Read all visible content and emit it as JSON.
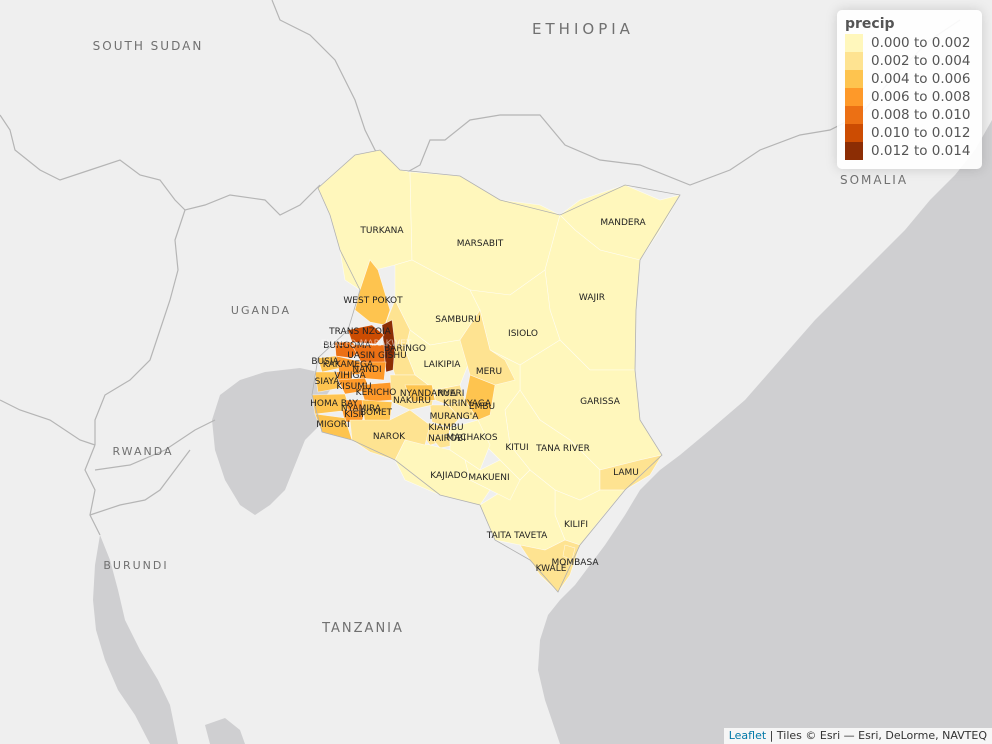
{
  "countries": [
    {
      "id": "south-sudan",
      "label": "SOUTH SUDAN"
    },
    {
      "id": "ethiopia",
      "label": "ETHIOPIA"
    },
    {
      "id": "somalia",
      "label": "SOMALIA"
    },
    {
      "id": "uganda",
      "label": "UGANDA"
    },
    {
      "id": "rwanda",
      "label": "RWANDA"
    },
    {
      "id": "burundi",
      "label": "BURUNDI"
    },
    {
      "id": "tanzania",
      "label": "TANZANIA"
    }
  ],
  "counties": [
    "TURKANA",
    "MARSABIT",
    "MANDERA",
    "WAJIR",
    "WEST POKOT",
    "SAMBURU",
    "ISIOLO",
    "TRANS NZOIA",
    "BUNGOMA",
    "BARINGO",
    "UASIN GISHU",
    "BUSIA",
    "KAKAMEGA",
    "NANDI",
    "LAIKIPIA",
    "MERU",
    "VIHIGA",
    "SIAYA",
    "KISUMU",
    "KERICHO",
    "NYANDARUA",
    "NYERI",
    "HOMA BAY",
    "NAKURU",
    "KIRINYAGA",
    "EMBU",
    "GARISSA",
    "NYAMIRA",
    "KISII",
    "BOMET",
    "MURANG'A",
    "MIGORI",
    "KIAMBU",
    "NAROK",
    "MACHAKOS",
    "NAIROBI",
    "KITUI",
    "TANA RIVER",
    "KAJIADO",
    "MAKUENI",
    "LAMU",
    "KILIFI",
    "TAITA TAVETA",
    "MOMBASA",
    "KWALE",
    "ELGEYO-MARAKWET"
  ],
  "legend": {
    "title": "precip",
    "classes": [
      {
        "label": "0.000 to 0.002",
        "color": "#FFF7BC"
      },
      {
        "label": "0.002 to 0.004",
        "color": "#FEE391"
      },
      {
        "label": "0.004 to 0.006",
        "color": "#FEC44F"
      },
      {
        "label": "0.006 to 0.008",
        "color": "#FE9929"
      },
      {
        "label": "0.008 to 0.010",
        "color": "#EC7014"
      },
      {
        "label": "0.010 to 0.012",
        "color": "#CC4C02"
      },
      {
        "label": "0.012 to 0.014",
        "color": "#8C2D04"
      }
    ]
  },
  "attribution": {
    "link": "Leaflet",
    "text": " | Tiles © Esri — Esri, DeLorme, NAVTEQ"
  },
  "colors": {
    "land": "#efefef",
    "water": "#cfcfd1",
    "border": "#b0b0b0"
  },
  "zoom_controls": false
}
